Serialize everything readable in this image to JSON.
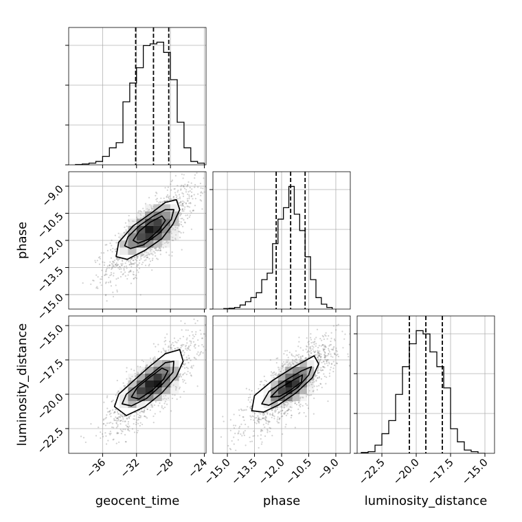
{
  "chart_data": {
    "type": "corner",
    "parameters": [
      "geocent_time",
      "phase",
      "luminosity_distance"
    ],
    "ranges": {
      "geocent_time": [
        -40.0,
        -23.8
      ],
      "phase": [
        -15.8,
        -8.2
      ],
      "luminosity_distance": [
        -24.3,
        -14.3
      ]
    },
    "ticks": {
      "geocent_time": {
        "values": [
          -36,
          -32,
          -28,
          -24
        ],
        "labels": [
          "−36",
          "−32",
          "−28",
          "−24"
        ]
      },
      "phase": {
        "values": [
          -15.0,
          -13.5,
          -12.0,
          -10.5,
          -9.0
        ],
        "labels": [
          "−15.0",
          "−13.5",
          "−12.0",
          "−10.5",
          "−9.0"
        ]
      },
      "luminosity_distance": {
        "values": [
          -22.5,
          -20.0,
          -17.5,
          -15.0
        ],
        "labels": [
          "−22.5",
          "−20.0",
          "−17.5",
          "−15.0"
        ]
      }
    },
    "quantiles": {
      "geocent_time": [
        -32.1,
        -30.0,
        -28.2
      ],
      "phase": [
        -12.3,
        -11.5,
        -10.7
      ],
      "luminosity_distance": [
        -20.5,
        -19.3,
        -18.1
      ]
    },
    "histograms": {
      "geocent_time": {
        "edges": [
          -39.2,
          -38.4,
          -37.6,
          -36.8,
          -36.0,
          -35.2,
          -34.4,
          -33.6,
          -32.8,
          -32.0,
          -31.2,
          -30.4,
          -29.6,
          -28.8,
          -28.0,
          -27.2,
          -26.4,
          -25.6,
          -24.8,
          -24.0
        ],
        "counts": [
          0.002,
          0.005,
          0.01,
          0.02,
          0.05,
          0.1,
          0.13,
          0.37,
          0.48,
          0.57,
          0.7,
          0.71,
          0.72,
          0.66,
          0.5,
          0.25,
          0.1,
          0.02,
          0.01
        ]
      },
      "phase": {
        "edges": [
          -15.2,
          -14.9,
          -14.6,
          -14.3,
          -14.0,
          -13.7,
          -13.4,
          -13.1,
          -12.8,
          -12.5,
          -12.2,
          -11.9,
          -11.6,
          -11.3,
          -11.0,
          -10.7,
          -10.4,
          -10.1,
          -9.8,
          -9.5,
          -9.2
        ],
        "counts": [
          0.003,
          0.005,
          0.01,
          0.025,
          0.045,
          0.07,
          0.1,
          0.18,
          0.22,
          0.4,
          0.55,
          0.62,
          0.75,
          0.58,
          0.48,
          0.32,
          0.18,
          0.07,
          0.03,
          0.01
        ]
      },
      "luminosity_distance": {
        "edges": [
          -24.0,
          -23.5,
          -23.0,
          -22.5,
          -22.0,
          -21.5,
          -21.0,
          -20.5,
          -20.0,
          -19.5,
          -19.0,
          -18.5,
          -18.0,
          -17.5,
          -17.0,
          -16.5,
          -16.0,
          -15.5,
          -15.0
        ],
        "counts": [
          0.005,
          0.01,
          0.05,
          0.12,
          0.2,
          0.36,
          0.53,
          0.67,
          0.75,
          0.73,
          0.62,
          0.53,
          0.4,
          0.15,
          0.07,
          0.02,
          0.01,
          0.0
        ]
      }
    },
    "pairs": [
      {
        "x": "geocent_time",
        "y": "phase",
        "density": {
          "x_edges": [
            -34.0,
            -33.0,
            -32.0,
            -31.0,
            -30.0,
            -29.0,
            -28.0,
            -27.0
          ],
          "y_edges": [
            -12.8,
            -12.4,
            -12.0,
            -11.6,
            -11.2,
            -10.8,
            -10.4,
            -10.0
          ],
          "values": [
            [
              0.15,
              0.2,
              0.12,
              0.05,
              0,
              0,
              0
            ],
            [
              0.2,
              0.45,
              0.55,
              0.4,
              0.2,
              0.08,
              0
            ],
            [
              0.1,
              0.45,
              0.75,
              0.85,
              0.6,
              0.3,
              0.1
            ],
            [
              0,
              0.25,
              0.7,
              1.0,
              0.9,
              0.45,
              0.15
            ],
            [
              0,
              0.1,
              0.35,
              0.7,
              0.8,
              0.55,
              0.2
            ],
            [
              0,
              0,
              0.12,
              0.35,
              0.5,
              0.4,
              0.2
            ],
            [
              0,
              0,
              0,
              0.1,
              0.2,
              0.2,
              0.1
            ]
          ]
        },
        "contours": [
          [
            [
              -34.4,
              -12.9
            ],
            [
              -34.1,
              -12.1
            ],
            [
              -32.4,
              -11.2
            ],
            [
              -30.3,
              -10.5
            ],
            [
              -28.6,
              -9.9
            ],
            [
              -27.3,
              -9.75
            ],
            [
              -26.9,
              -10.3
            ],
            [
              -27.7,
              -11.1
            ],
            [
              -29.0,
              -11.9
            ],
            [
              -31.0,
              -12.55
            ],
            [
              -33.1,
              -13.05
            ]
          ],
          [
            [
              -33.4,
              -12.3
            ],
            [
              -33.0,
              -11.8
            ],
            [
              -31.7,
              -11.2
            ],
            [
              -30.0,
              -10.65
            ],
            [
              -28.6,
              -10.3
            ],
            [
              -27.6,
              -10.3
            ],
            [
              -27.9,
              -10.85
            ],
            [
              -29.3,
              -11.6
            ],
            [
              -31.2,
              -12.25
            ],
            [
              -32.7,
              -12.45
            ]
          ],
          [
            [
              -32.4,
              -12.0
            ],
            [
              -31.7,
              -11.5
            ],
            [
              -30.4,
              -11.0
            ],
            [
              -29.0,
              -10.65
            ],
            [
              -28.6,
              -10.9
            ],
            [
              -29.3,
              -11.4
            ],
            [
              -30.6,
              -11.95
            ],
            [
              -31.8,
              -12.15
            ]
          ]
        ],
        "scatter_center": [
          -30.2,
          -11.5
        ],
        "scatter_sd": [
          2.6,
          1.25
        ],
        "correlation": 0.78
      },
      {
        "x": "geocent_time",
        "y": "luminosity_distance",
        "density": {
          "x_edges": [
            -34.0,
            -33.0,
            -32.0,
            -31.0,
            -30.0,
            -29.0,
            -28.0,
            -27.0
          ],
          "y_edges": [
            -21.0,
            -20.5,
            -20.0,
            -19.5,
            -19.0,
            -18.5,
            -18.0,
            -17.5
          ],
          "values": [
            [
              0.15,
              0.25,
              0.15,
              0.05,
              0,
              0,
              0
            ],
            [
              0.15,
              0.45,
              0.6,
              0.45,
              0.2,
              0.05,
              0
            ],
            [
              0.05,
              0.4,
              0.8,
              0.9,
              0.55,
              0.25,
              0.05
            ],
            [
              0,
              0.2,
              0.6,
              0.95,
              1.0,
              0.5,
              0.15
            ],
            [
              0,
              0.05,
              0.3,
              0.65,
              0.85,
              0.6,
              0.25
            ],
            [
              0,
              0,
              0.1,
              0.3,
              0.5,
              0.5,
              0.25
            ],
            [
              0,
              0,
              0,
              0.05,
              0.2,
              0.3,
              0.15
            ]
          ]
        },
        "contours": [
          [
            [
              -34.6,
              -20.9
            ],
            [
              -34.1,
              -20.0
            ],
            [
              -32.5,
              -19.1
            ],
            [
              -30.5,
              -18.0
            ],
            [
              -28.6,
              -17.05
            ],
            [
              -26.9,
              -16.75
            ],
            [
              -26.5,
              -17.6
            ],
            [
              -27.3,
              -18.7
            ],
            [
              -29.0,
              -19.9
            ],
            [
              -31.0,
              -20.9
            ],
            [
              -33.2,
              -21.55
            ]
          ],
          [
            [
              -33.7,
              -20.7
            ],
            [
              -33.2,
              -20.0
            ],
            [
              -31.8,
              -19.3
            ],
            [
              -30.0,
              -18.4
            ],
            [
              -28.6,
              -17.7
            ],
            [
              -27.6,
              -17.6
            ],
            [
              -27.7,
              -18.4
            ],
            [
              -29.0,
              -19.3
            ],
            [
              -30.8,
              -20.3
            ],
            [
              -32.6,
              -20.85
            ]
          ],
          [
            [
              -32.6,
              -20.2
            ],
            [
              -31.9,
              -19.5
            ],
            [
              -30.5,
              -18.8
            ],
            [
              -29.0,
              -18.1
            ],
            [
              -28.3,
              -18.3
            ],
            [
              -28.8,
              -18.9
            ],
            [
              -30.1,
              -19.7
            ],
            [
              -31.7,
              -20.35
            ]
          ]
        ],
        "scatter_center": [
          -30.2,
          -19.3
        ],
        "scatter_sd": [
          2.6,
          1.65
        ],
        "correlation": 0.8
      },
      {
        "x": "phase",
        "y": "luminosity_distance",
        "density": {
          "x_edges": [
            -13.0,
            -12.6,
            -12.2,
            -11.8,
            -11.4,
            -11.0,
            -10.6,
            -10.2
          ],
          "y_edges": [
            -21.0,
            -20.5,
            -20.0,
            -19.5,
            -19.0,
            -18.5,
            -18.0,
            -17.5
          ],
          "values": [
            [
              0.15,
              0.25,
              0.15,
              0.05,
              0,
              0,
              0
            ],
            [
              0.15,
              0.45,
              0.6,
              0.45,
              0.2,
              0.05,
              0
            ],
            [
              0.05,
              0.4,
              0.75,
              0.85,
              0.5,
              0.25,
              0.05
            ],
            [
              0,
              0.2,
              0.6,
              1.0,
              0.85,
              0.45,
              0.15
            ],
            [
              0,
              0.05,
              0.3,
              0.6,
              0.75,
              0.55,
              0.25
            ],
            [
              0,
              0,
              0.1,
              0.3,
              0.45,
              0.45,
              0.25
            ],
            [
              0,
              0,
              0,
              0.05,
              0.15,
              0.25,
              0.15
            ]
          ]
        },
        "contours": [
          [
            [
              -13.65,
              -21.2
            ],
            [
              -13.5,
              -20.1
            ],
            [
              -12.5,
              -19.0
            ],
            [
              -11.3,
              -18.0
            ],
            [
              -10.2,
              -17.2
            ],
            [
              -9.95,
              -17.8
            ],
            [
              -10.3,
              -18.8
            ],
            [
              -11.2,
              -19.9
            ],
            [
              -12.2,
              -20.8
            ],
            [
              -13.0,
              -21.3
            ]
          ],
          [
            [
              -13.1,
              -20.7
            ],
            [
              -12.7,
              -19.8
            ],
            [
              -11.8,
              -19.0
            ],
            [
              -10.9,
              -18.3
            ],
            [
              -10.35,
              -18.0
            ],
            [
              -10.5,
              -18.6
            ],
            [
              -11.1,
              -19.5
            ],
            [
              -12.0,
              -20.3
            ],
            [
              -12.7,
              -20.8
            ]
          ],
          [
            [
              -12.6,
              -20.2
            ],
            [
              -12.15,
              -19.6
            ],
            [
              -11.4,
              -19.0
            ],
            [
              -10.85,
              -18.6
            ],
            [
              -10.9,
              -19.1
            ],
            [
              -11.5,
              -19.7
            ],
            [
              -12.1,
              -20.15
            ]
          ]
        ],
        "scatter_center": [
          -11.5,
          -19.3
        ],
        "scatter_sd": [
          1.25,
          1.65
        ],
        "correlation": 0.8
      }
    ]
  }
}
